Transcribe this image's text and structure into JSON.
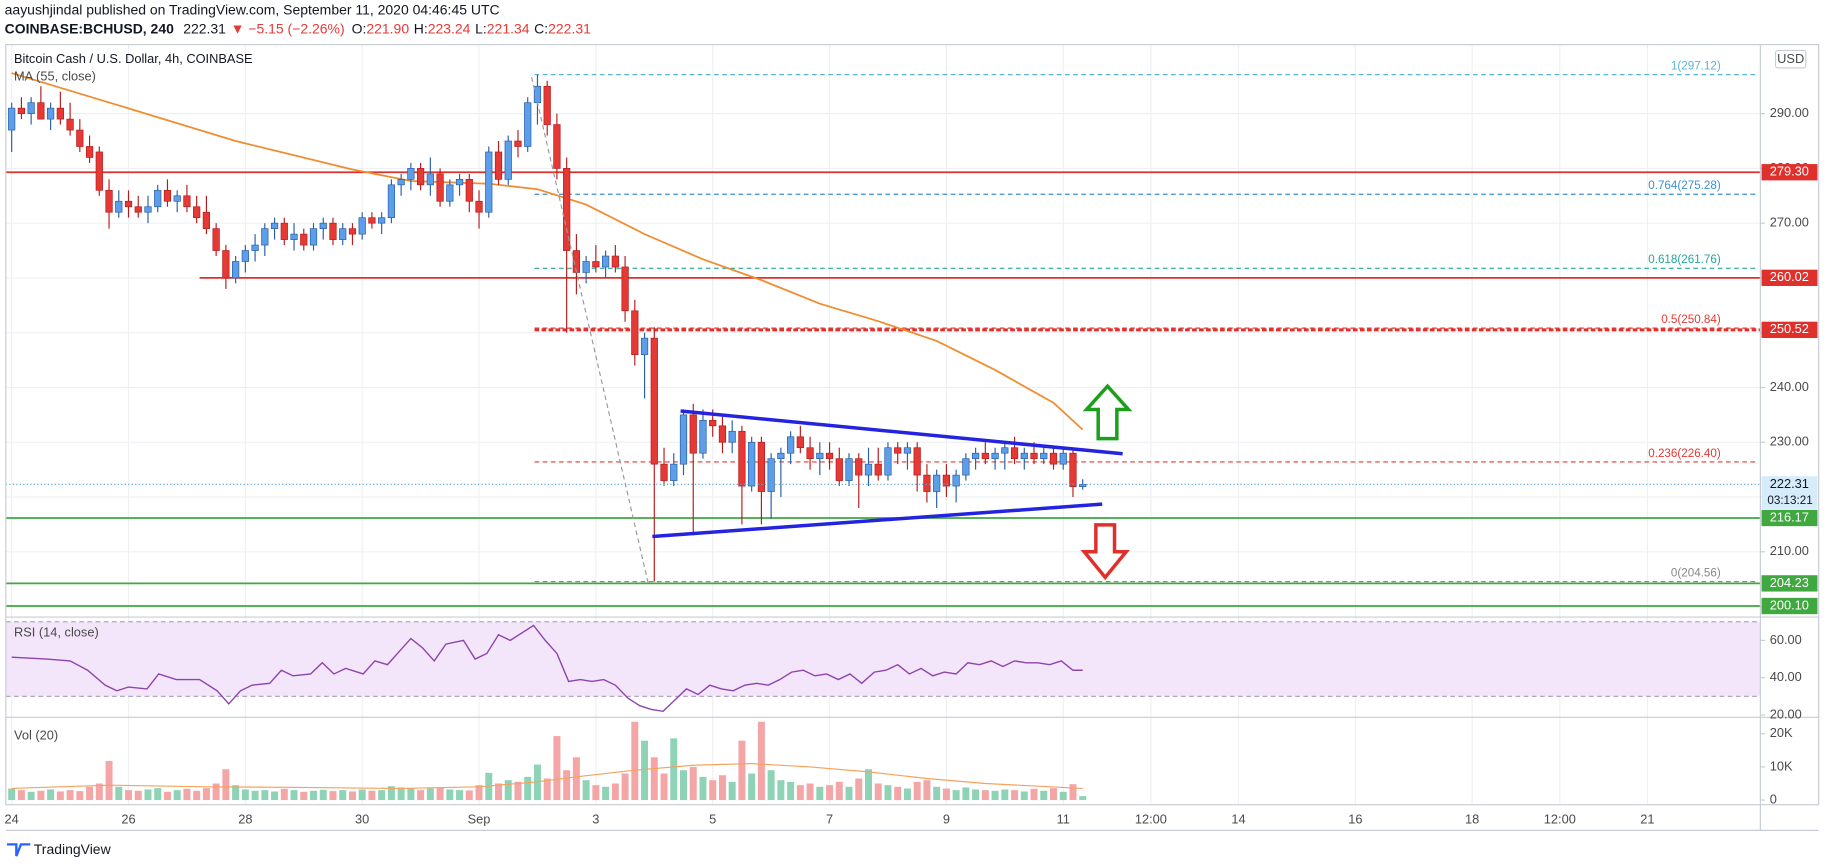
{
  "header": {
    "author_line": "aayushjindal published on TradingView.com, September 11, 2020 04:46:45 UTC",
    "symbol": "COINBASE:BCHUSD, 240",
    "change": "▼ −5.15 (−2.26%)",
    "ohlc": [
      [
        "O:",
        "221.90"
      ],
      [
        "H:",
        "223.24"
      ],
      [
        "L:",
        "221.34"
      ],
      [
        "C:",
        "222.31"
      ]
    ]
  },
  "footer": {
    "brand": "TradingView"
  },
  "chart_data": [
    {
      "type": "candlestick",
      "title": "Bitcoin Cash / U.S. Dollar, 4h, COINBASE",
      "unit": "USD",
      "up_color": "#5d9ee8",
      "down_color": "#e53935",
      "grid": true,
      "xlim": [
        -0.6,
        179.6
      ],
      "xticks": [
        {
          "value": 0,
          "label": "24"
        },
        {
          "value": 12,
          "label": "26"
        },
        {
          "value": 24,
          "label": "28"
        },
        {
          "value": 36,
          "label": "30"
        },
        {
          "value": 48,
          "label": "Sep"
        },
        {
          "value": 60,
          "label": "3"
        },
        {
          "value": 72,
          "label": "5"
        },
        {
          "value": 84,
          "label": "7"
        },
        {
          "value": 96,
          "label": "9"
        },
        {
          "value": 108,
          "label": "11"
        },
        {
          "value": 117,
          "label": "12:00"
        },
        {
          "value": 126,
          "label": "14"
        },
        {
          "value": 138,
          "label": "16"
        },
        {
          "value": 150,
          "label": "18"
        },
        {
          "value": 159,
          "label": "12:00"
        },
        {
          "value": 168,
          "label": "21"
        }
      ],
      "ylim": [
        198.3,
        302.6
      ],
      "yticks": [
        {
          "value": 200,
          "label": "200.00"
        },
        {
          "value": 210,
          "label": "210.00"
        },
        {
          "value": 220,
          "label": "220.00"
        },
        {
          "value": 230,
          "label": "230.00"
        },
        {
          "value": 240,
          "label": "240.00"
        },
        {
          "value": 250,
          "label": "250.00"
        },
        {
          "value": 260,
          "label": "260.00"
        },
        {
          "value": 270,
          "label": "270.00"
        },
        {
          "value": 280,
          "label": "280.00"
        },
        {
          "value": 290,
          "label": "290.00"
        }
      ],
      "candles": [
        [
          287,
          292,
          283,
          291
        ],
        [
          291,
          293,
          289,
          290
        ],
        [
          290,
          293,
          288,
          292
        ],
        [
          292,
          295,
          289,
          289
        ],
        [
          289,
          292,
          287,
          291
        ],
        [
          291,
          294,
          288,
          289
        ],
        [
          289,
          292,
          286,
          287
        ],
        [
          287,
          289,
          283,
          284
        ],
        [
          284,
          286,
          281,
          282
        ],
        [
          283,
          284,
          275,
          276
        ],
        [
          276,
          278,
          269,
          272
        ],
        [
          272,
          276,
          271,
          274
        ],
        [
          274,
          276,
          271,
          273
        ],
        [
          273,
          275,
          271,
          272
        ],
        [
          272,
          275,
          270,
          273
        ],
        [
          273,
          277,
          272,
          276
        ],
        [
          276,
          278,
          273,
          274
        ],
        [
          274,
          276,
          272,
          275
        ],
        [
          275,
          277,
          272,
          273
        ],
        [
          273,
          275,
          270,
          271
        ],
        [
          272,
          275,
          268,
          269
        ],
        [
          269,
          270,
          264,
          265
        ],
        [
          265,
          266,
          258,
          260
        ],
        [
          260,
          264,
          259,
          263
        ],
        [
          263,
          266,
          261,
          265
        ],
        [
          265,
          268,
          263,
          266
        ],
        [
          266,
          270,
          264,
          269
        ],
        [
          269,
          271,
          267,
          270
        ],
        [
          270,
          271,
          266,
          267
        ],
        [
          267,
          270,
          265,
          268
        ],
        [
          268,
          269,
          265,
          266
        ],
        [
          266,
          270,
          265,
          269
        ],
        [
          269,
          271,
          267,
          270
        ],
        [
          270,
          271,
          266,
          267
        ],
        [
          267,
          270,
          266,
          269
        ],
        [
          269,
          270,
          266,
          268
        ],
        [
          268,
          272,
          267,
          271
        ],
        [
          271,
          272,
          269,
          270
        ],
        [
          270,
          272,
          268,
          271
        ],
        [
          271,
          278,
          270,
          277
        ],
        [
          277,
          279,
          275,
          278
        ],
        [
          278,
          281,
          276,
          280
        ],
        [
          280,
          281,
          276,
          277
        ],
        [
          277,
          282,
          275,
          279
        ],
        [
          279,
          280,
          273,
          274
        ],
        [
          274,
          278,
          273,
          277
        ],
        [
          277,
          279,
          275,
          278
        ],
        [
          278,
          279,
          272,
          274
        ],
        [
          274,
          276,
          269,
          272
        ],
        [
          272,
          284,
          271,
          283
        ],
        [
          283,
          285,
          277,
          278
        ],
        [
          278,
          286,
          277,
          285
        ],
        [
          285,
          287,
          282,
          284
        ],
        [
          284,
          293,
          283,
          292
        ],
        [
          292,
          297.1,
          288,
          295
        ],
        [
          295,
          296,
          286,
          288
        ],
        [
          288,
          290,
          278,
          280
        ],
        [
          280,
          282,
          250,
          265
        ],
        [
          265,
          268,
          257,
          261
        ],
        [
          261,
          264,
          259,
          263
        ],
        [
          263,
          266,
          261,
          262
        ],
        [
          262,
          265,
          260,
          264
        ],
        [
          264,
          266,
          261,
          262
        ],
        [
          262,
          264,
          252,
          254
        ],
        [
          254,
          256,
          244,
          246
        ],
        [
          246,
          250,
          238,
          249
        ],
        [
          249,
          251,
          204.56,
          226
        ],
        [
          226,
          229,
          222,
          223
        ],
        [
          223,
          228,
          222,
          226
        ],
        [
          226,
          236,
          224,
          235
        ],
        [
          235,
          237,
          213,
          228
        ],
        [
          228,
          236,
          227,
          234
        ],
        [
          234,
          236,
          231,
          233
        ],
        [
          233,
          235,
          228,
          230
        ],
        [
          230,
          234,
          228,
          232
        ],
        [
          232,
          233,
          215,
          222
        ],
        [
          222,
          231,
          221,
          230
        ],
        [
          230,
          231,
          215,
          221
        ],
        [
          221,
          228,
          216,
          227
        ],
        [
          227,
          229,
          220,
          228
        ],
        [
          228,
          232,
          226,
          231
        ],
        [
          231,
          233,
          228,
          229
        ],
        [
          229,
          231,
          225,
          227
        ],
        [
          227,
          230,
          224,
          228
        ],
        [
          228,
          230,
          225,
          227
        ],
        [
          227,
          229,
          222,
          223
        ],
        [
          223,
          228,
          222,
          227
        ],
        [
          227,
          228,
          218,
          224
        ],
        [
          224,
          229,
          222,
          226
        ],
        [
          226,
          229,
          223,
          224
        ],
        [
          224,
          230,
          223,
          229
        ],
        [
          229,
          230,
          226,
          228
        ],
        [
          228,
          230,
          225,
          229
        ],
        [
          229,
          230,
          221,
          224
        ],
        [
          224,
          226,
          219,
          221
        ],
        [
          221,
          225,
          218,
          224
        ],
        [
          224,
          226,
          220,
          222
        ],
        [
          222,
          225,
          219,
          224
        ],
        [
          224,
          228,
          223,
          227
        ],
        [
          227,
          229,
          225,
          228
        ],
        [
          228,
          230,
          226,
          227
        ],
        [
          227,
          229,
          225,
          228
        ],
        [
          228,
          230,
          225,
          229
        ],
        [
          229,
          231,
          226,
          227
        ],
        [
          227,
          229,
          225,
          228
        ],
        [
          228,
          230,
          226,
          227
        ],
        [
          227,
          229,
          226,
          228
        ],
        [
          228,
          229,
          225,
          226
        ],
        [
          226,
          229,
          225,
          228
        ],
        [
          228,
          229,
          220,
          221.9
        ],
        [
          221.9,
          223.24,
          221.34,
          222.31
        ]
      ],
      "countdown": "03:13:21",
      "ma": {
        "name": "MA (55, close)",
        "color": "#f08c2e",
        "x": [
          0,
          11,
          23,
          35,
          41,
          49,
          54,
          59,
          65,
          71,
          77,
          83,
          89,
          95,
          101,
          107,
          110
        ],
        "values": [
          297.4,
          291.5,
          285,
          279.8,
          277.7,
          277.2,
          276.2,
          273.4,
          268,
          263.4,
          259.6,
          255.3,
          252.1,
          248.5,
          243.2,
          237.2,
          232.3
        ]
      },
      "levels": {
        "values": [
          279.3,
          260.02,
          250.52,
          216.17,
          204.23,
          200.1
        ],
        "value_labels": [
          "279.30",
          "260.02",
          "250.52",
          "216.17",
          "204.23",
          "200.10"
        ],
        "colors": [
          "#e0302c",
          "#e0302c",
          "#e0302c",
          "#3fa83f",
          "#3fa83f",
          "#3fa83f"
        ],
        "dashed": [
          false,
          false,
          true,
          false,
          false,
          false
        ],
        "x_start": [
          null,
          19.3,
          53.7,
          null,
          null,
          null
        ]
      },
      "fib": {
        "x_start": 53.7,
        "values": [
          297.12,
          275.28,
          261.76,
          250.84,
          226.4,
          204.56
        ],
        "value_labels": [
          "1(297.12)",
          "0.764(275.28)",
          "0.618(261.76)",
          "0.5(250.84)",
          "0.236(226.40)",
          "0(204.56)"
        ],
        "colors": [
          "#5ab4d6",
          "#3d8fd1",
          "#26a69a",
          "#e53935",
          "#e53935",
          "#888888"
        ]
      },
      "trendlines": {
        "color": "#2424e0",
        "lines": [
          {
            "x": [
              68.7,
              114.1
            ],
            "values": [
              235.7,
              227.9
            ]
          },
          {
            "x": [
              65.8,
              112
            ],
            "values": [
              212.8,
              218.7
            ]
          }
        ]
      }
    },
    {
      "type": "line",
      "title": "RSI (14, close)",
      "color": "#8e44ad",
      "band": [
        30,
        70
      ],
      "band_color": "#f3e5fa",
      "ylim": [
        19.4,
        71.9
      ],
      "yticks": [
        {
          "value": 20,
          "label": "20.00"
        },
        {
          "value": 40,
          "label": "40.00"
        },
        {
          "value": 60,
          "label": "60.00"
        }
      ],
      "x": [
        0,
        3.6,
        6,
        7.8,
        9.6,
        10.8,
        12,
        13.9,
        15.1,
        16.9,
        19.3,
        21.1,
        22.3,
        23.5,
        24.7,
        26.5,
        27.7,
        28.9,
        30.7,
        31.9,
        33.1,
        34.3,
        36.1,
        37.3,
        38.6,
        39.8,
        41,
        42.2,
        43.4,
        44.6,
        46.4,
        47.6,
        48.8,
        50,
        51.2,
        52.4,
        53.6,
        54.8,
        56,
        57.2,
        58.4,
        59.6,
        60.8,
        62,
        63.3,
        64.5,
        65.7,
        66.9,
        68.1,
        69.3,
        70.5,
        71.7,
        72.9,
        74.1,
        75.3,
        76.5,
        77.7,
        78.9,
        80.1,
        81.3,
        82.5,
        83.7,
        84.9,
        86.1,
        87.3,
        88.6,
        89.8,
        91,
        92.2,
        93.4,
        94.6,
        95.8,
        97,
        98.2,
        99.4,
        100.6,
        101.8,
        103,
        104.2,
        105.4,
        106.6,
        107.8,
        109,
        110
      ],
      "values": [
        51,
        50,
        49,
        44,
        36,
        33,
        35,
        34,
        42,
        39,
        39,
        33,
        26,
        33,
        36,
        37,
        44,
        41,
        42,
        48,
        42,
        45,
        42,
        49,
        47,
        54,
        61,
        56,
        49,
        58,
        60,
        50,
        53,
        63,
        60,
        64,
        68,
        60,
        53,
        38,
        39,
        38,
        39,
        36,
        29,
        25,
        23,
        22,
        28,
        34,
        31,
        36,
        34,
        33,
        36,
        37,
        36,
        39,
        43,
        44,
        41,
        42,
        39,
        42,
        37,
        43,
        44,
        47,
        42,
        45,
        41,
        43,
        42,
        48,
        47,
        49,
        46,
        49,
        48,
        48,
        47,
        49,
        44,
        44
      ]
    },
    {
      "type": "bar",
      "title": "Vol (20)",
      "up_color": "#8fd3b6",
      "down_color": "#f4a6a6",
      "ylim": [
        -1400,
        24600
      ],
      "yticks": [
        0,
        {
          "value": 10000,
          "label": "10K"
        },
        {
          "value": 20000,
          "label": "20K"
        }
      ],
      "values": [
        3500,
        3000,
        2500,
        2800,
        3200,
        2600,
        3000,
        2700,
        4000,
        5000,
        11800,
        4000,
        3000,
        2800,
        3200,
        3600,
        2500,
        3000,
        3400,
        2800,
        3600,
        5000,
        9300,
        4500,
        3200,
        2800,
        3000,
        2600,
        3400,
        3000,
        2500,
        2800,
        3100,
        2700,
        3000,
        2600,
        3200,
        2800,
        3000,
        4200,
        3800,
        3600,
        3000,
        3500,
        3800,
        3200,
        3000,
        2900,
        4500,
        8200,
        5000,
        6000,
        5500,
        7000,
        10700,
        6500,
        19300,
        9000,
        12900,
        6000,
        4500,
        4000,
        5000,
        8000,
        23600,
        17900,
        12900,
        8000,
        18600,
        9000,
        10000,
        7000,
        6000,
        7500,
        5500,
        17900,
        8000,
        23600,
        9000,
        6000,
        5500,
        4500,
        5000,
        4000,
        4500,
        5500,
        4000,
        6500,
        9300,
        5000,
        4500,
        4000,
        3500,
        5500,
        6000,
        4000,
        3500,
        3000,
        3800,
        3200,
        3000,
        2800,
        3200,
        3000,
        2600,
        3400,
        2800,
        3600,
        2500,
        4800,
        1200
      ],
      "ma": {
        "color": "#f5a25d",
        "x": [
          0,
          10,
          20,
          30,
          40,
          48,
          54,
          58,
          64,
          70,
          76,
          82,
          88,
          94,
          100,
          110
        ],
        "values": [
          3500,
          4500,
          4000,
          3800,
          3500,
          4000,
          5500,
          7000,
          9000,
          10500,
          11000,
          10000,
          8500,
          6500,
          5000,
          3500
        ]
      }
    }
  ]
}
